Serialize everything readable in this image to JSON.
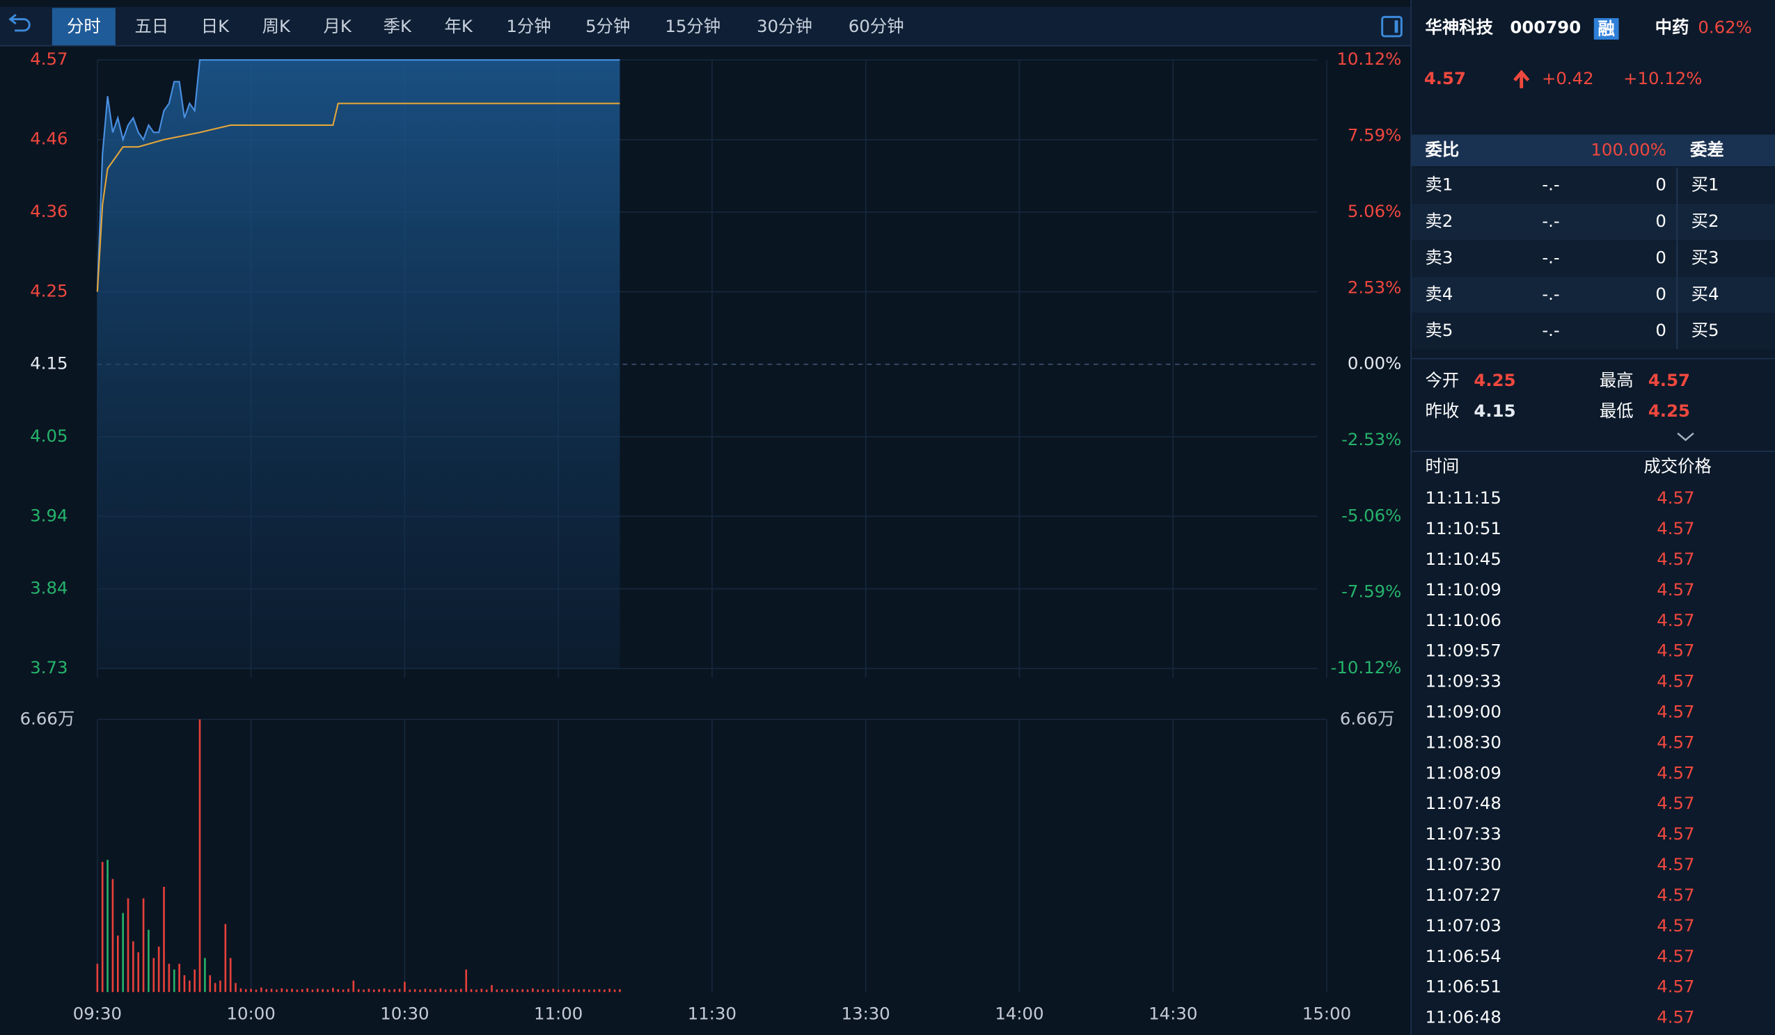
{
  "toolbar": {
    "tabs": [
      "分时",
      "五日",
      "日K",
      "周K",
      "月K",
      "季K",
      "年K",
      "1分钟",
      "5分钟",
      "15分钟",
      "30分钟",
      "60分钟"
    ],
    "active": 0
  },
  "quote": {
    "name": "华神科技",
    "code": "000790",
    "badge": "融",
    "sector": "中药",
    "sector_change": "0.62%",
    "price": 4.57,
    "change": "+0.42",
    "change_pct": "+10.12%"
  },
  "order_book": {
    "ratio_label": "委比",
    "ratio": "100.00%",
    "diff_label": "委差",
    "rows": [
      {
        "ask": "卖1",
        "price": "-.-",
        "volume": 0,
        "bid": "买1"
      },
      {
        "ask": "卖2",
        "price": "-.-",
        "volume": 0,
        "bid": "买2"
      },
      {
        "ask": "卖3",
        "price": "-.-",
        "volume": 0,
        "bid": "买3"
      },
      {
        "ask": "卖4",
        "price": "-.-",
        "volume": 0,
        "bid": "买4"
      },
      {
        "ask": "卖5",
        "price": "-.-",
        "volume": 0,
        "bid": "买5"
      }
    ]
  },
  "summary": [
    {
      "label": "今开",
      "value": 4.25
    },
    {
      "label": "最高",
      "value": 4.57
    },
    {
      "label": "昨收",
      "value": 4.15
    },
    {
      "label": "最低",
      "value": 4.25
    }
  ],
  "trades": {
    "headers": [
      "时间",
      "成交价格"
    ],
    "rows": [
      {
        "time": "11:11:15",
        "price": 4.57
      },
      {
        "time": "11:10:51",
        "price": 4.57
      },
      {
        "time": "11:10:45",
        "price": 4.57
      },
      {
        "time": "11:10:09",
        "price": 4.57
      },
      {
        "time": "11:10:06",
        "price": 4.57
      },
      {
        "time": "11:09:57",
        "price": 4.57
      },
      {
        "time": "11:09:33",
        "price": 4.57
      },
      {
        "time": "11:09:00",
        "price": 4.57
      },
      {
        "time": "11:08:30",
        "price": 4.57
      },
      {
        "time": "11:08:09",
        "price": 4.57
      },
      {
        "time": "11:07:48",
        "price": 4.57
      },
      {
        "time": "11:07:33",
        "price": 4.57
      },
      {
        "time": "11:07:30",
        "price": 4.57
      },
      {
        "time": "11:07:27",
        "price": 4.57
      },
      {
        "time": "11:07:03",
        "price": 4.57
      },
      {
        "time": "11:06:54",
        "price": 4.57
      },
      {
        "time": "11:06:51",
        "price": 4.57
      },
      {
        "time": "11:06:48",
        "price": 4.57
      }
    ]
  },
  "chart_data": [
    {
      "type": "line",
      "xlim": [
        0,
        240
      ],
      "ylim": [
        3.73,
        4.57
      ],
      "yticks": [
        4.57,
        4.46,
        4.36,
        4.25,
        4.15,
        4.05,
        3.94,
        3.84,
        3.73
      ],
      "y2lim": [
        -10.12,
        10.12
      ],
      "y2ticks": [
        {
          "value": 10.12,
          "label": "10.12%"
        },
        {
          "value": 7.59,
          "label": "7.59%"
        },
        {
          "value": 5.06,
          "label": "5.06%"
        },
        {
          "value": 2.53,
          "label": "2.53%"
        },
        {
          "value": 0,
          "label": "0.00%"
        },
        {
          "value": -2.53,
          "label": "-2.53%"
        },
        {
          "value": -5.06,
          "label": "-5.06%"
        },
        {
          "value": -7.59,
          "label": "-7.59%"
        },
        {
          "value": -10.12,
          "label": "-10.12%"
        }
      ],
      "grid": true,
      "series": [
        {
          "color": "#4a90e2",
          "fill": true,
          "x": [
            0,
            1,
            2,
            3,
            4,
            5,
            6,
            7,
            8,
            9,
            10,
            11,
            12,
            13,
            14,
            15,
            16,
            17,
            18,
            19,
            20,
            102
          ],
          "values": [
            4.25,
            4.44,
            4.52,
            4.47,
            4.49,
            4.46,
            4.48,
            4.49,
            4.47,
            4.46,
            4.48,
            4.47,
            4.47,
            4.5,
            4.51,
            4.54,
            4.54,
            4.49,
            4.51,
            4.5,
            4.57,
            4.57
          ]
        },
        {
          "color": "#e3a53a",
          "fill": false,
          "x": [
            0,
            1,
            2,
            3,
            4,
            5,
            8,
            13,
            20,
            26,
            46,
            47,
            102
          ],
          "values": [
            4.25,
            4.37,
            4.42,
            4.43,
            4.44,
            4.45,
            4.45,
            4.46,
            4.47,
            4.48,
            4.48,
            4.51,
            4.51
          ]
        }
      ]
    },
    {
      "type": "bar",
      "xlim": [
        0,
        240
      ],
      "ylim": [
        0,
        66600
      ],
      "yticks": [
        {
          "value": 66600,
          "label": "6.66万"
        }
      ],
      "xticks": [
        {
          "value": 0,
          "label": "09:30"
        },
        {
          "value": 30,
          "label": "10:00"
        },
        {
          "value": 60,
          "label": "10:30"
        },
        {
          "value": 90,
          "label": "11:00"
        },
        {
          "value": 120,
          "label": "11:30"
        },
        {
          "value": 150,
          "label": "13:30"
        },
        {
          "value": 180,
          "label": "14:00"
        },
        {
          "value": 210,
          "label": "14:30"
        },
        {
          "value": 240,
          "label": "15:00"
        }
      ],
      "x": [
        0,
        1,
        2,
        3,
        4,
        5,
        6,
        7,
        8,
        9,
        10,
        11,
        12,
        13,
        14,
        15,
        16,
        17,
        18,
        19,
        20,
        21,
        22,
        23,
        24,
        25,
        26,
        27,
        28,
        29,
        30,
        31,
        32,
        33,
        34,
        35,
        36,
        37,
        38,
        39,
        40,
        41,
        42,
        43,
        44,
        45,
        46,
        47,
        48,
        49,
        50,
        51,
        52,
        53,
        54,
        55,
        56,
        57,
        58,
        59,
        60,
        61,
        62,
        63,
        64,
        65,
        66,
        67,
        68,
        69,
        70,
        71,
        72,
        73,
        74,
        75,
        76,
        77,
        78,
        79,
        80,
        81,
        82,
        83,
        84,
        85,
        86,
        87,
        88,
        89,
        90,
        91,
        92,
        93,
        94,
        95,
        96,
        97,
        98,
        99,
        100,
        101,
        102
      ],
      "values": [
        6900,
        31800,
        32300,
        27600,
        13800,
        19300,
        22900,
        12400,
        9700,
        22900,
        15200,
        8300,
        11100,
        25700,
        6900,
        5500,
        6900,
        4100,
        2800,
        5500,
        66600,
        8300,
        4100,
        2200,
        2800,
        16600,
        8300,
        2200,
        900,
        700,
        800,
        600,
        1100,
        700,
        800,
        600,
        900,
        700,
        800,
        600,
        700,
        900,
        600,
        800,
        700,
        600,
        1000,
        700,
        600,
        800,
        2800,
        700,
        600,
        800,
        600,
        700,
        900,
        600,
        700,
        800,
        2500,
        600,
        700,
        600,
        800,
        700,
        600,
        900,
        600,
        700,
        600,
        800,
        5500,
        700,
        600,
        800,
        600,
        1700,
        600,
        700,
        600,
        800,
        600,
        700,
        600,
        900,
        600,
        700,
        600,
        800,
        600,
        700,
        600,
        800,
        600,
        700,
        600,
        600,
        700,
        600,
        800,
        600,
        700
      ],
      "colors": [
        "#e8403a",
        "#e8403a",
        "#27b36a",
        "#e8403a",
        "#e8403a",
        "#27b36a",
        "#e8403a",
        "#e8403a",
        "#e8403a",
        "#e8403a",
        "#27b36a",
        "#e8403a",
        "#e8403a",
        "#e8403a",
        "#e8403a",
        "#27b36a",
        "#e8403a",
        "#e8403a",
        "#e8403a",
        "#e8403a",
        "#e8403a",
        "#27b36a",
        "#e8403a",
        "#e8403a",
        "#e8403a",
        "#e8403a",
        "#e8403a",
        "#e8403a",
        "#e8403a",
        "#e8403a",
        "#e8403a",
        "#e8403a",
        "#e8403a",
        "#e8403a",
        "#e8403a",
        "#e8403a",
        "#e8403a",
        "#e8403a",
        "#e8403a",
        "#e8403a",
        "#e8403a",
        "#e8403a",
        "#e8403a",
        "#e8403a",
        "#e8403a",
        "#e8403a",
        "#e8403a",
        "#e8403a",
        "#e8403a",
        "#e8403a",
        "#e8403a",
        "#e8403a",
        "#e8403a",
        "#e8403a",
        "#e8403a",
        "#e8403a",
        "#e8403a",
        "#e8403a",
        "#e8403a",
        "#e8403a",
        "#e8403a",
        "#e8403a",
        "#e8403a",
        "#e8403a",
        "#e8403a",
        "#e8403a",
        "#e8403a",
        "#e8403a",
        "#e8403a",
        "#e8403a",
        "#e8403a",
        "#e8403a",
        "#e8403a",
        "#e8403a",
        "#e8403a",
        "#e8403a",
        "#e8403a",
        "#e8403a",
        "#e8403a",
        "#e8403a",
        "#e8403a",
        "#e8403a",
        "#e8403a",
        "#e8403a",
        "#e8403a",
        "#e8403a",
        "#e8403a",
        "#e8403a",
        "#e8403a",
        "#e8403a",
        "#e8403a",
        "#e8403a",
        "#e8403a",
        "#e8403a",
        "#e8403a",
        "#e8403a",
        "#e8403a",
        "#e8403a",
        "#e8403a",
        "#e8403a",
        "#e8403a",
        "#e8403a",
        "#e8403a"
      ]
    }
  ]
}
